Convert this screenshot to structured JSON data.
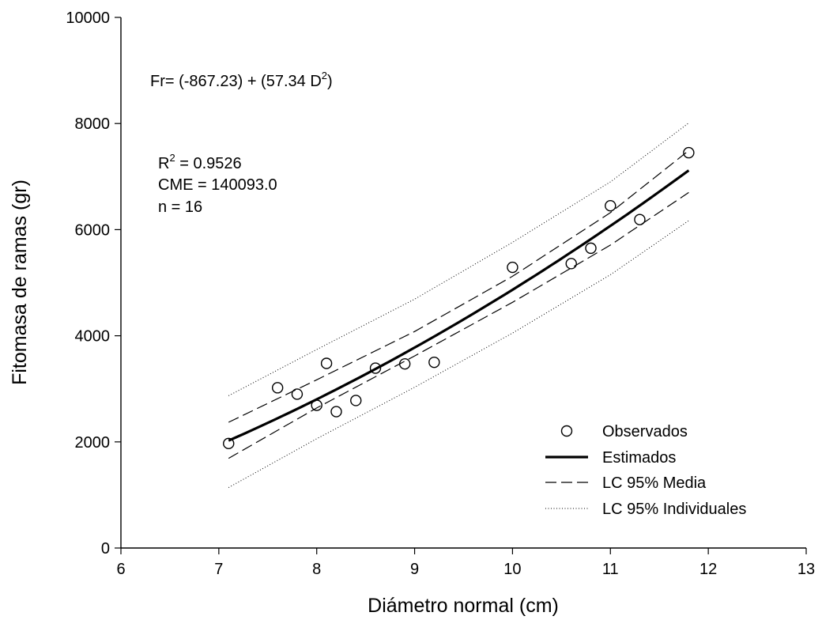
{
  "chart_data": {
    "type": "scatter",
    "xlabel": "Diámetro normal (cm)",
    "ylabel": "Fitomasa de ramas (gr)",
    "xlim": [
      6,
      13
    ],
    "ylim": [
      0,
      10000
    ],
    "xticks": [
      6,
      7,
      8,
      9,
      10,
      11,
      12,
      13
    ],
    "yticks": [
      0,
      2000,
      4000,
      6000,
      8000,
      10000
    ],
    "grid": false,
    "legend_position": "bottom-right",
    "annotations": {
      "equation_prefix": "Fr= (-867.23) + (57.34 D",
      "equation_sup": "2",
      "equation_suffix": ")",
      "r2_prefix": "R",
      "r2_sup": "2",
      "r2_suffix": " = 0.9526",
      "cme": "CME = 140093.0",
      "n": "n = 16"
    },
    "fit": {
      "intercept": -867.23,
      "slope": 57.34,
      "x_range": [
        7.1,
        11.8
      ]
    },
    "series": [
      {
        "name": "Observados",
        "kind": "points",
        "x": [
          7.1,
          7.6,
          7.8,
          8.0,
          8.1,
          8.2,
          8.4,
          8.6,
          8.9,
          9.2,
          10.0,
          10.6,
          10.8,
          11.0,
          11.3,
          11.8
        ],
        "y": [
          1970,
          3020,
          2900,
          2690,
          3480,
          2570,
          2780,
          3390,
          3470,
          3500,
          5290,
          5360,
          5650,
          6450,
          6190,
          7450
        ]
      },
      {
        "name": "Estimados",
        "kind": "fit"
      },
      {
        "name": "LC 95% Media",
        "kind": "dashed",
        "x": [
          7.1,
          8.0,
          9.0,
          10.0,
          11.0,
          11.8
        ],
        "upper": [
          2370,
          3170,
          4080,
          5120,
          6320,
          7490
        ],
        "lower": [
          1690,
          2640,
          3620,
          4630,
          5710,
          6700
        ]
      },
      {
        "name": "LC 95% Individuales",
        "kind": "dotted",
        "x": [
          7.1,
          8.0,
          9.0,
          10.0,
          11.0,
          11.8
        ],
        "upper": [
          2870,
          3740,
          4690,
          5760,
          6900,
          8010
        ],
        "lower": [
          1140,
          2060,
          3030,
          4050,
          5150,
          6170
        ]
      }
    ]
  }
}
